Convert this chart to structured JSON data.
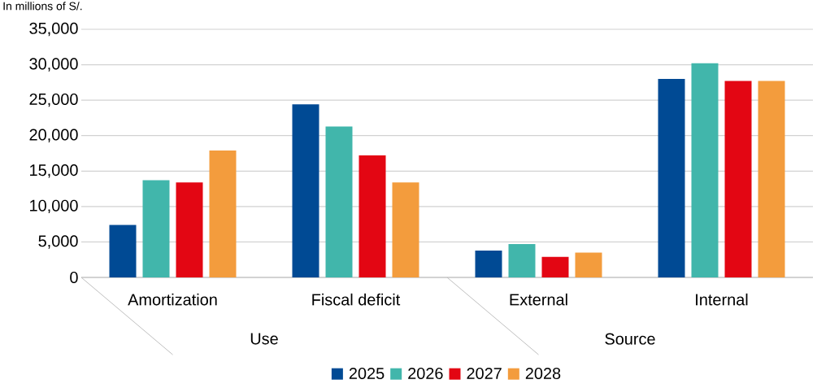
{
  "chart_data": {
    "type": "bar",
    "ylabel": "In millions of S/.",
    "categories": [
      "Amortization",
      "Fiscal deficit",
      "External",
      "Internal"
    ],
    "series": [
      {
        "name": "2025",
        "color": "#004a94",
        "values": [
          7400,
          24400,
          3800,
          28000
        ]
      },
      {
        "name": "2026",
        "color": "#41b6ab",
        "values": [
          13700,
          21300,
          4700,
          30200
        ]
      },
      {
        "name": "2027",
        "color": "#e30613",
        "values": [
          13400,
          17200,
          2900,
          27700
        ]
      },
      {
        "name": "2028",
        "color": "#f39c3d",
        "values": [
          17900,
          13400,
          3500,
          27700
        ]
      }
    ],
    "ylim": [
      0,
      35000
    ],
    "yticks": [
      0,
      {
        "value": 5000,
        "label": "5,000"
      },
      {
        "value": 10000,
        "label": "10,000"
      },
      {
        "value": 15000,
        "label": "15,000"
      },
      {
        "value": 20000,
        "label": "20,000"
      },
      {
        "value": 25000,
        "label": "25,000"
      },
      {
        "value": 30000,
        "label": "30,000"
      },
      {
        "value": 35000,
        "label": "35,000"
      }
    ],
    "grid": "y",
    "legend": "bottom",
    "annotations": [
      "Use",
      "Source"
    ]
  }
}
